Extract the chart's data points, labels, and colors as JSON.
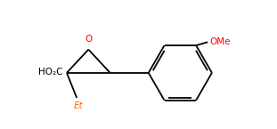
{
  "background_color": "#ffffff",
  "line_color": "#000000",
  "label_HO2C": "HO₂C",
  "label_O": "O",
  "label_Et": "Et",
  "label_OMe": "OMe",
  "label_HO2C_color": "#000000",
  "label_Et_color": "#ff6600",
  "label_OMe_color": "#ff0000",
  "label_O_color": "#ff0000",
  "figsize": [
    3.11,
    1.45
  ],
  "dpi": 100
}
